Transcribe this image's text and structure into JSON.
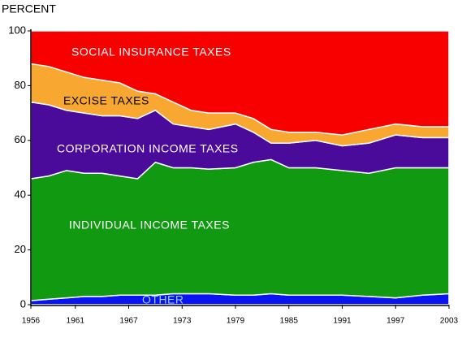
{
  "chart_data": {
    "type": "stacked_area",
    "y_label": "PERCENT",
    "x": [
      1956,
      1958,
      1960,
      1962,
      1964,
      1966,
      1968,
      1970,
      1972,
      1974,
      1976,
      1979,
      1981,
      1983,
      1985,
      1988,
      1991,
      1994,
      1997,
      2000,
      2003
    ],
    "series": [
      {
        "name": "OTHER",
        "color": "#0a14f0",
        "values": [
          1.5,
          2,
          2.5,
          3,
          3,
          3.5,
          3.5,
          3.5,
          4,
          4,
          4,
          3.5,
          3.5,
          4,
          3.5,
          3.5,
          3.5,
          3,
          2.5,
          3.5,
          4
        ]
      },
      {
        "name": "INDIVIDUAL INCOME TAXES",
        "color": "#119a11",
        "values": [
          44.5,
          45,
          46.5,
          45,
          45,
          43.5,
          42.5,
          48.5,
          46,
          46,
          45.5,
          46.5,
          48.5,
          49,
          46.5,
          46.5,
          45.5,
          45,
          47.5,
          46.5,
          46
        ]
      },
      {
        "name": "CORPORATION INCOME TAXES",
        "color": "#4a0a9a",
        "values": [
          28,
          26,
          22,
          22,
          21,
          22,
          22,
          19,
          16,
          15,
          14.5,
          16,
          11,
          6,
          9,
          10,
          9,
          11,
          12,
          11,
          11
        ]
      },
      {
        "name": "EXCISE TAXES",
        "color": "#f8a830",
        "values": [
          14,
          14,
          14,
          13,
          13,
          12,
          10,
          6,
          8,
          6,
          6,
          4,
          5,
          5,
          4,
          3,
          4,
          5,
          4,
          4,
          4
        ]
      },
      {
        "name": "SOCIAL INSURANCE TAXES",
        "color": "#f80000",
        "values": [
          12,
          13,
          15,
          17,
          18,
          19,
          22,
          23,
          26,
          29,
          30,
          30,
          32,
          36,
          37,
          37,
          38,
          36,
          34,
          35,
          35
        ]
      }
    ],
    "xlim": [
      1956,
      2003
    ],
    "xticks": [
      1956,
      1961,
      1967,
      1973,
      1979,
      1985,
      1991,
      1997,
      2003
    ],
    "ylim": [
      0,
      100
    ],
    "yticks": [
      0,
      20,
      40,
      60,
      80,
      100
    ]
  }
}
